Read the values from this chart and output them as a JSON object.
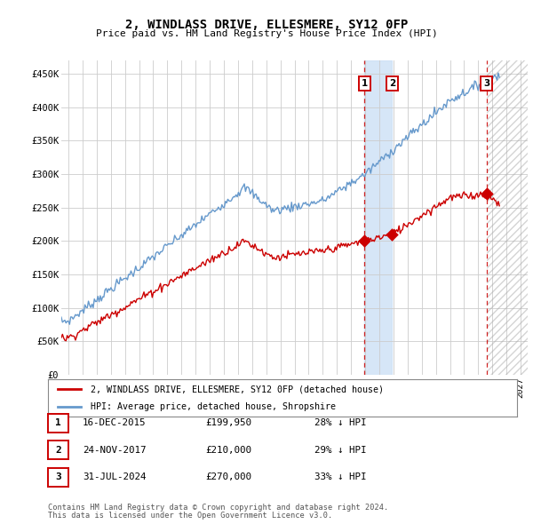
{
  "title": "2, WINDLASS DRIVE, ELLESMERE, SY12 0FP",
  "subtitle": "Price paid vs. HM Land Registry's House Price Index (HPI)",
  "legend_line1": "2, WINDLASS DRIVE, ELLESMERE, SY12 0FP (detached house)",
  "legend_line2": "HPI: Average price, detached house, Shropshire",
  "footer1": "Contains HM Land Registry data © Crown copyright and database right 2024.",
  "footer2": "This data is licensed under the Open Government Licence v3.0.",
  "transactions": [
    {
      "num": 1,
      "date": "16-DEC-2015",
      "price": "£199,950",
      "pct": "28% ↓ HPI",
      "year": 2015.96
    },
    {
      "num": 2,
      "date": "24-NOV-2017",
      "price": "£210,000",
      "pct": "29% ↓ HPI",
      "year": 2017.9
    },
    {
      "num": 3,
      "date": "31-JUL-2024",
      "price": "£270,000",
      "pct": "33% ↓ HPI",
      "year": 2024.58
    }
  ],
  "hpi_color": "#6699cc",
  "red_color": "#cc0000",
  "marker_color": "#cc0000",
  "shade_color": "#cce0f5",
  "hatch_color": "#aaaaaa",
  "grid_color": "#cccccc",
  "background_color": "#ffffff",
  "ylim": [
    0,
    470000
  ],
  "xlim_start": 1994.5,
  "xlim_end": 2027.5,
  "future_start": 2024.58,
  "shade_start": 2015.96,
  "shade_end": 2017.9
}
